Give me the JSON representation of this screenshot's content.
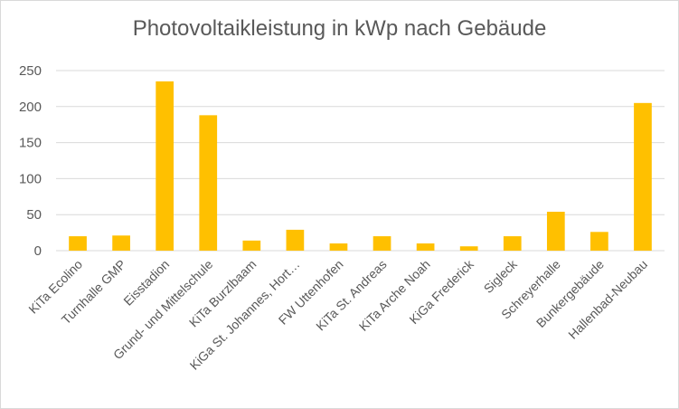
{
  "chart_data": {
    "type": "bar",
    "title": "Photovoltaikleistung in kWp nach Gebäude",
    "xlabel": "",
    "ylabel": "",
    "ylim": [
      0,
      250
    ],
    "yticks": [
      0,
      50,
      100,
      150,
      200,
      250
    ],
    "grid": true,
    "bar_color": "#FFC000",
    "categories": [
      "KiTa Ecolino",
      "Turnhalle GMP",
      "Eisstadion",
      "Grund- und Mittelschule",
      "KiTa Burzlbaam",
      "KiGa St. Johannes, Hort…",
      "FW Uttenhofen",
      "KiTa St. Andreas",
      "KiTa Arche Noah",
      "KiGa Frederick",
      "Sigleck",
      "Schreyerhalle",
      "Bunkergebäude",
      "Hallenbad-Neubau"
    ],
    "values": [
      20,
      21,
      235,
      188,
      14,
      29,
      10,
      20,
      10,
      6,
      20,
      54,
      26,
      205
    ]
  }
}
